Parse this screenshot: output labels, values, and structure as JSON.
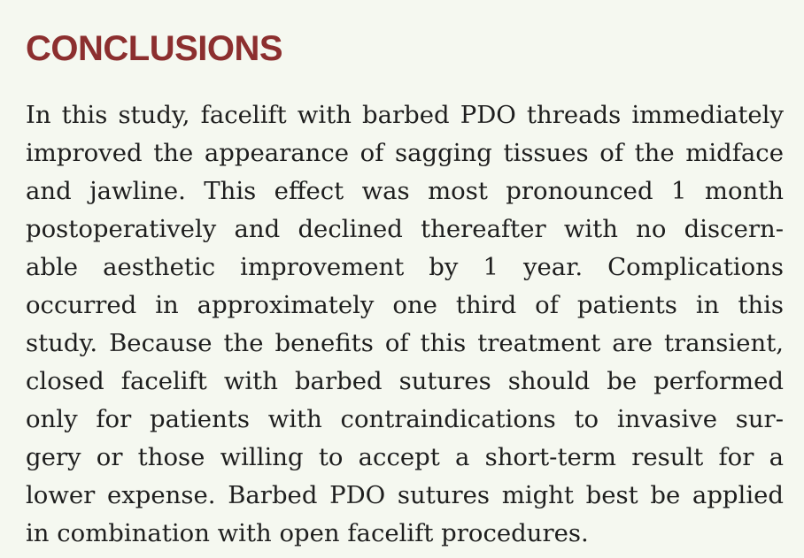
{
  "section": {
    "heading": "CONCLUSIONS",
    "lines": [
      "In this study, facelift with barbed PDO threads immediately",
      "improved the appearance of sagging tissues of the midface",
      "and jawline. This effect was most pronounced 1 month",
      "postoperatively and declined thereafter with no discern-",
      "able aesthetic improvement by 1 year. Complications",
      "occurred in approximately one third of patients in this",
      "study. Because the benefits of this treatment are transient,",
      "closed facelift with barbed sutures should be performed",
      "only for patients with contraindications to invasive sur-",
      "gery or those willing to accept a short-term result for a",
      "lower expense. Barbed PDO sutures might best be applied",
      "in combination with open facelift procedures."
    ]
  },
  "colors": {
    "heading": "#8c2f2f",
    "text": "#1e1e1e",
    "background": "#f5f8f0"
  }
}
